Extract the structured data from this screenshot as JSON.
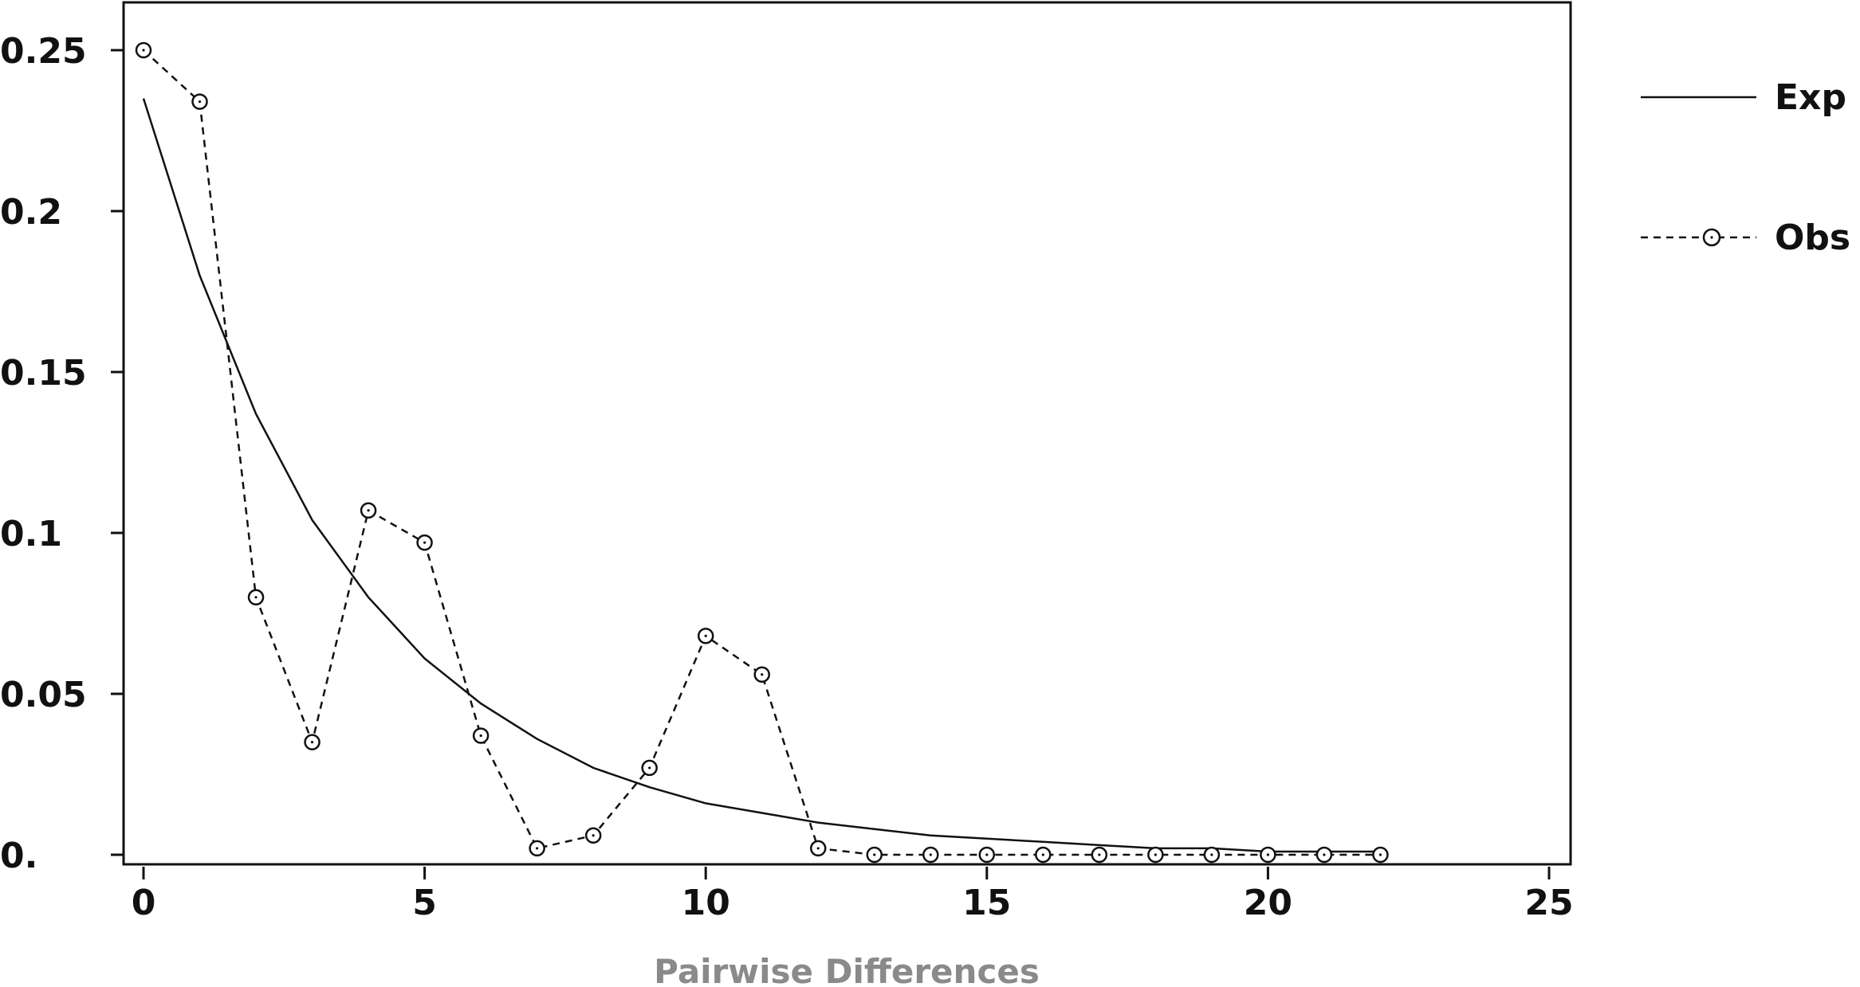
{
  "chart_data": {
    "type": "line",
    "title": "",
    "xlabel": "Pairwise Differences",
    "ylabel": "",
    "xlim": [
      0,
      25
    ],
    "ylim": [
      0,
      0.25
    ],
    "x_ticks": [
      0,
      5,
      10,
      15,
      20,
      25
    ],
    "x_tick_labels": [
      "0",
      "5",
      "10",
      "15",
      "20",
      "25"
    ],
    "y_ticks": [
      0,
      0.05,
      0.1,
      0.15,
      0.2,
      0.25
    ],
    "y_tick_labels": [
      "0.",
      "0.05",
      "0.1",
      "0.15",
      "0.2",
      "0.25"
    ],
    "grid": false,
    "legend_position": "right",
    "series": [
      {
        "name": "Exp",
        "style": "solid",
        "color": "#111111",
        "x": [
          0,
          1,
          2,
          3,
          4,
          5,
          6,
          7,
          8,
          9,
          10,
          11,
          12,
          13,
          14,
          15,
          16,
          17,
          18,
          19,
          20,
          21,
          22
        ],
        "values": [
          0.235,
          0.18,
          0.137,
          0.104,
          0.08,
          0.061,
          0.047,
          0.036,
          0.027,
          0.021,
          0.016,
          0.013,
          0.01,
          0.008,
          0.006,
          0.005,
          0.004,
          0.003,
          0.002,
          0.002,
          0.001,
          0.001,
          0.001
        ]
      },
      {
        "name": "Obs",
        "style": "dashed",
        "marker": "circle",
        "color": "#111111",
        "x": [
          0,
          1,
          2,
          3,
          4,
          5,
          6,
          7,
          8,
          9,
          10,
          11,
          12,
          13,
          14,
          15,
          16,
          17,
          18,
          19,
          20,
          21,
          22
        ],
        "values": [
          0.25,
          0.234,
          0.08,
          0.035,
          0.107,
          0.097,
          0.037,
          0.002,
          0.006,
          0.027,
          0.068,
          0.056,
          0.002,
          0.0,
          0.0,
          0.0,
          0.0,
          0.0,
          0.0,
          0.0,
          0.0,
          0.0,
          0.0
        ]
      }
    ]
  }
}
